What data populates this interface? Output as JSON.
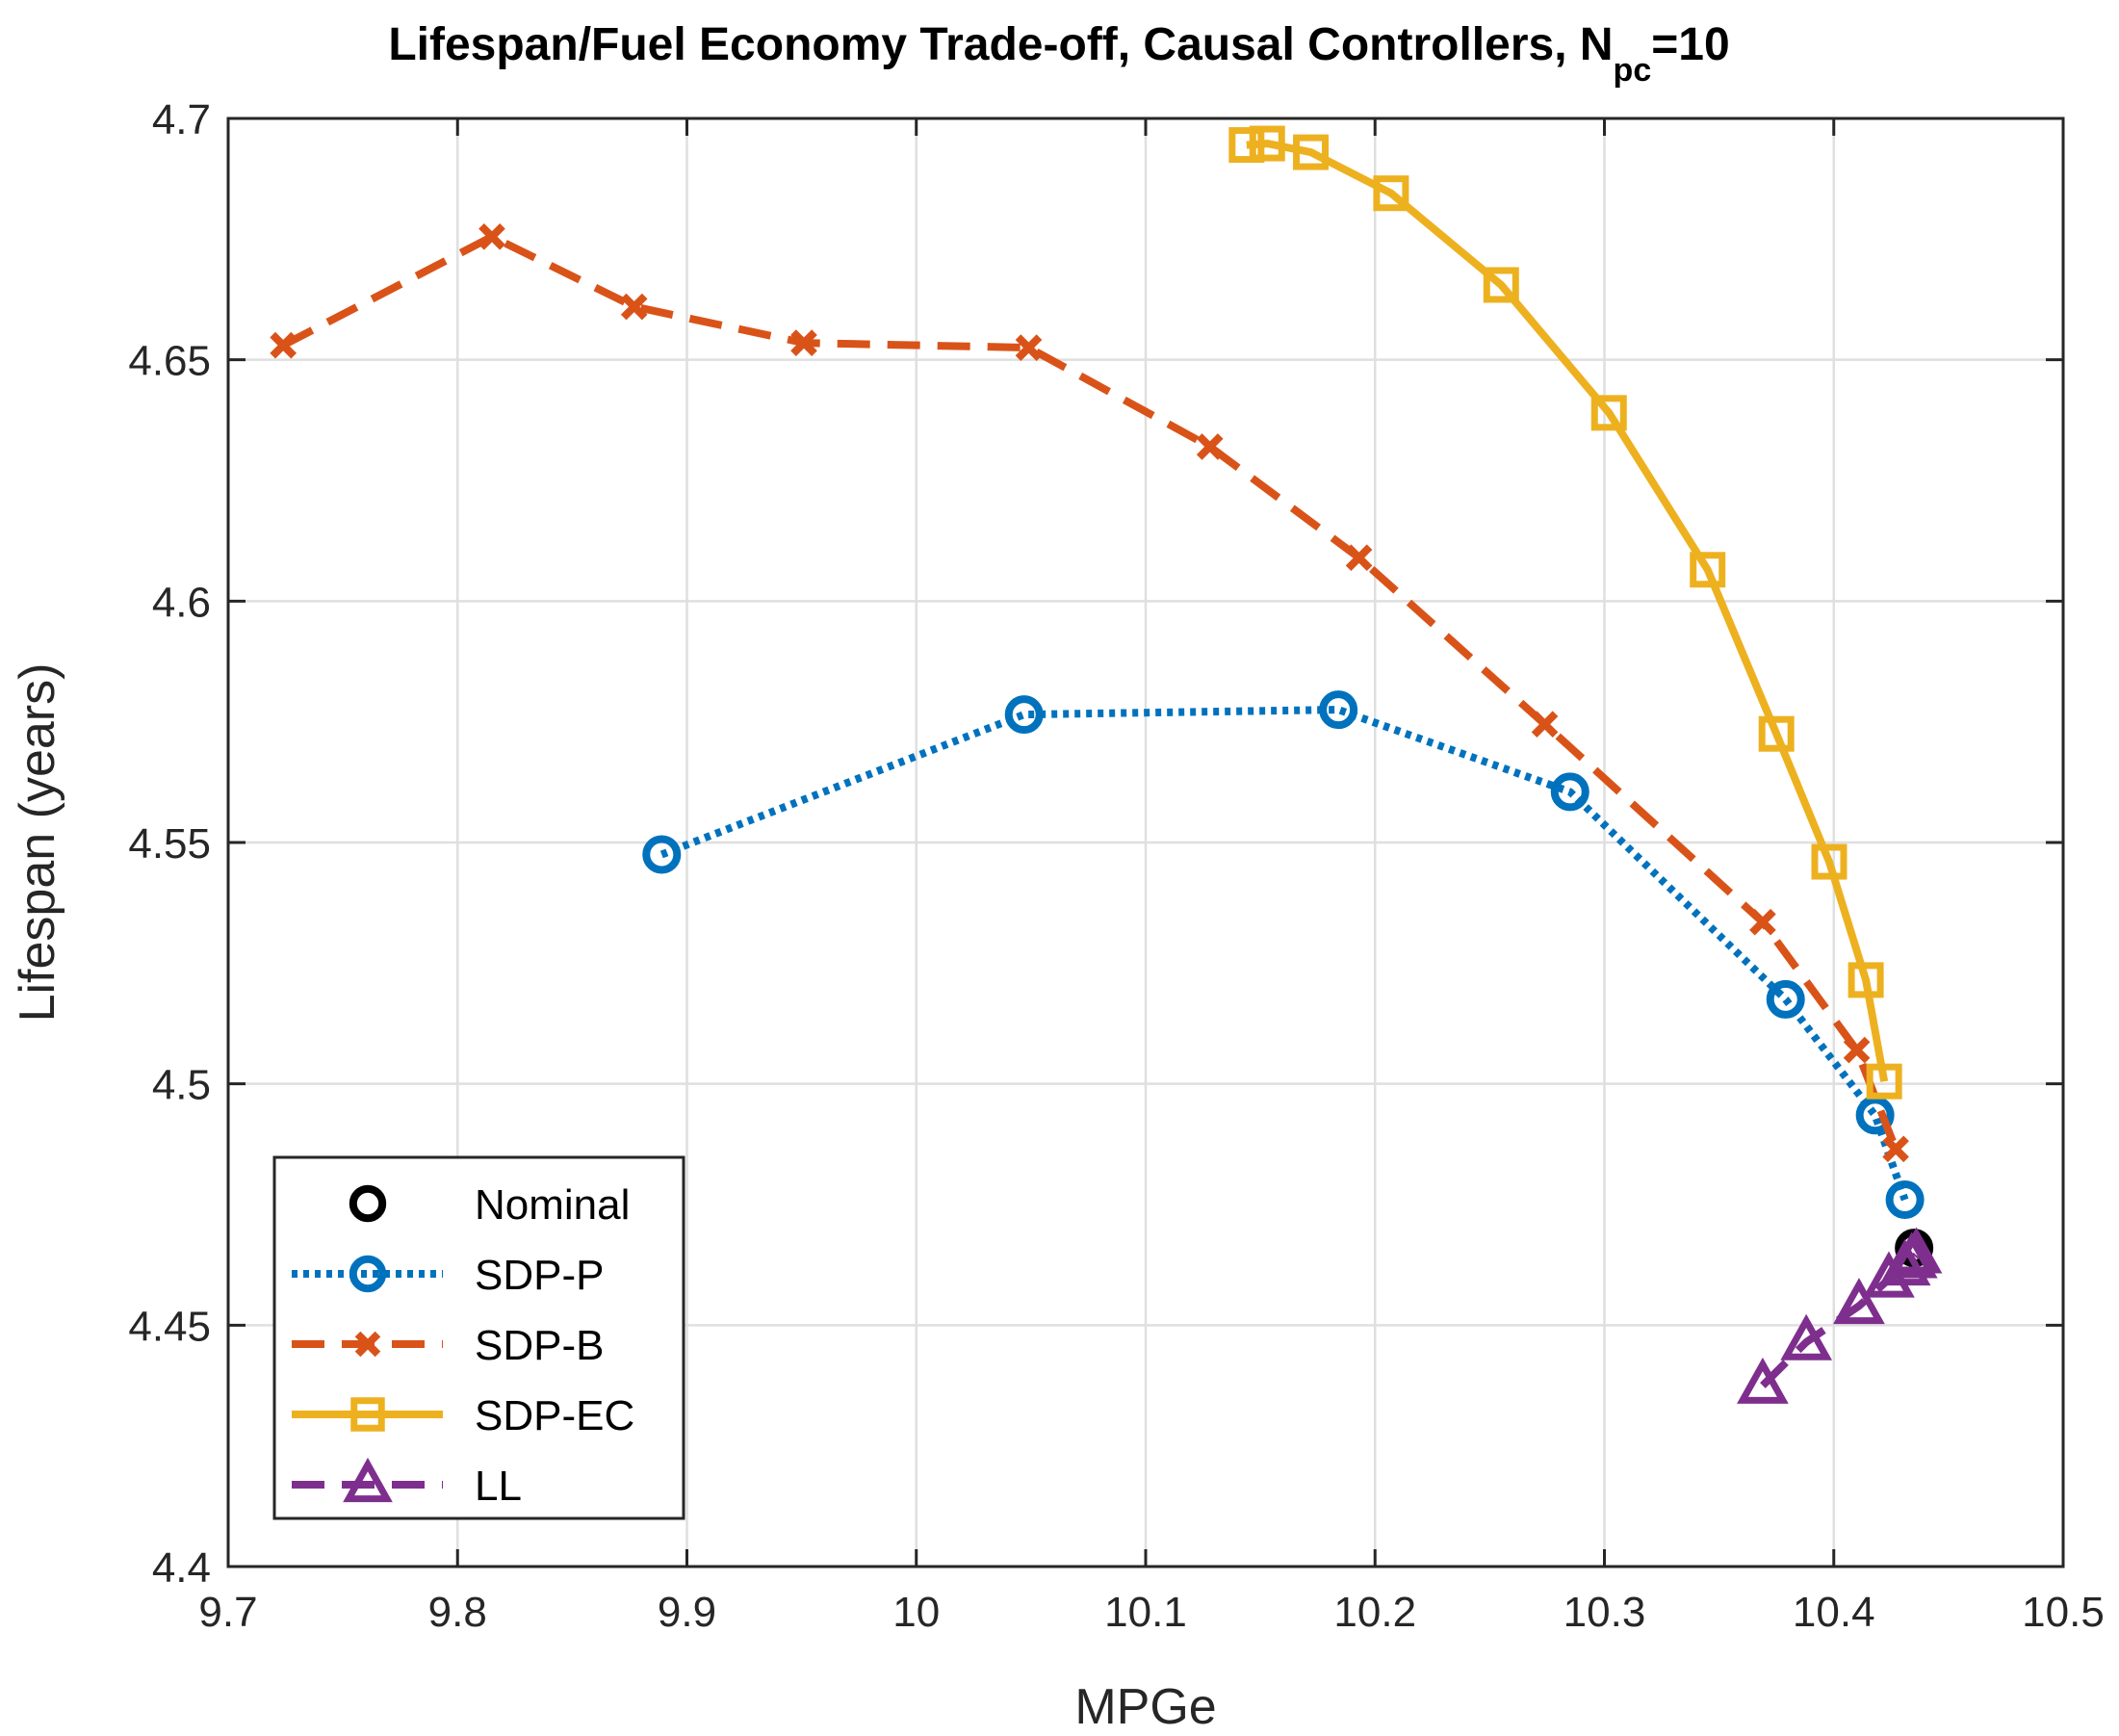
{
  "chart_data": {
    "type": "line",
    "title_main": "Lifespan/Fuel Economy Trade-off, Causal Controllers, N",
    "title_subscript": "pc",
    "title_suffix": "=10",
    "xlabel": "MPGe",
    "ylabel": "Lifespan (years)",
    "xlim": [
      9.7,
      10.5
    ],
    "ylim": [
      4.4,
      4.7
    ],
    "grid": true,
    "legend_position": "bottom-left",
    "x_ticks": [
      9.7,
      9.8,
      9.9,
      10.0,
      10.1,
      10.2,
      10.3,
      10.4,
      10.5
    ],
    "x_tick_labels": [
      "9.7",
      "9.8",
      "9.9",
      "10",
      "10.1",
      "10.2",
      "10.3",
      "10.4",
      "10.5"
    ],
    "y_ticks": [
      4.4,
      4.45,
      4.5,
      4.55,
      4.6,
      4.65,
      4.7
    ],
    "y_tick_labels": [
      "4.4",
      "4.45",
      "4.5",
      "4.55",
      "4.6",
      "4.65",
      "4.7"
    ],
    "series": [
      {
        "name": "Nominal",
        "color": "#000000",
        "line": "none",
        "marker": "circle",
        "x": [
          10.435
        ],
        "y": [
          4.466
        ]
      },
      {
        "name": "SDP-P",
        "color": "#0072BD",
        "line": "dotted",
        "marker": "circle",
        "x": [
          9.889,
          10.047,
          10.184,
          10.285,
          10.379,
          10.418,
          10.431
        ],
        "y": [
          4.5475,
          4.5765,
          4.5775,
          4.5605,
          4.5175,
          4.4935,
          4.476
        ]
      },
      {
        "name": "SDP-B",
        "color": "#D95319",
        "line": "dashed",
        "marker": "x",
        "x": [
          9.724,
          9.815,
          9.877,
          9.951,
          10.049,
          10.128,
          10.193,
          10.274,
          10.369,
          10.41,
          10.427
        ],
        "y": [
          4.653,
          4.6755,
          4.661,
          4.6535,
          4.6525,
          4.632,
          4.609,
          4.5745,
          4.5335,
          4.507,
          4.4865
        ]
      },
      {
        "name": "SDP-EC",
        "color": "#EDB120",
        "line": "solid",
        "marker": "square",
        "x": [
          10.144,
          10.153,
          10.172,
          10.207,
          10.255,
          10.302,
          10.345,
          10.375,
          10.398,
          10.414,
          10.422
        ],
        "y": [
          4.6945,
          4.6948,
          4.693,
          4.6845,
          4.6655,
          4.639,
          4.6065,
          4.5725,
          4.546,
          4.5215,
          4.5005
        ]
      },
      {
        "name": "LL",
        "color": "#7E2F8E",
        "line": "dashed",
        "marker": "triangle",
        "x": [
          10.369,
          10.388,
          10.411,
          10.424,
          10.431,
          10.434,
          10.436
        ],
        "y": [
          4.4375,
          4.4465,
          4.454,
          4.4595,
          4.462,
          4.4635,
          4.4645
        ]
      }
    ]
  }
}
